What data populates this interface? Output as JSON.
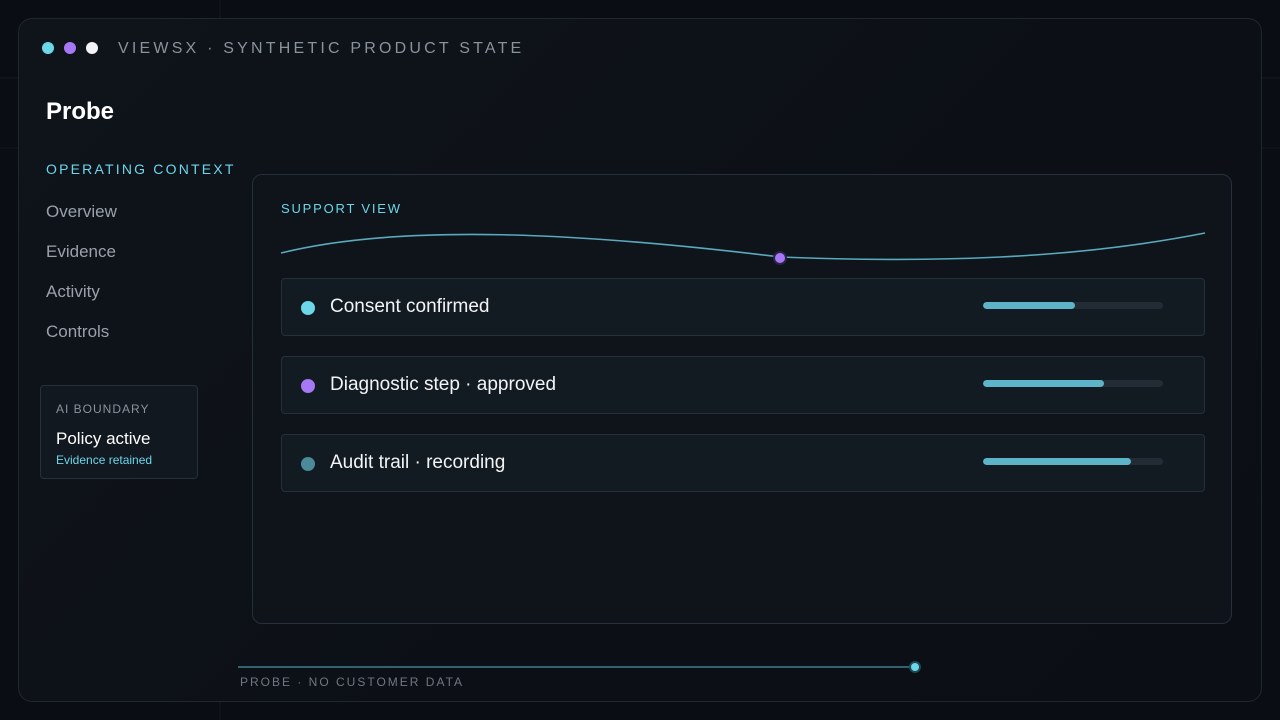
{
  "window": {
    "dots": [
      {
        "name": "cyan",
        "color": "#6cd6ea"
      },
      {
        "name": "violet",
        "color": "#a678f5"
      },
      {
        "name": "white",
        "color": "#f2f4f6"
      }
    ],
    "brand": "VIEWSX · SYNTHETIC PRODUCT STATE"
  },
  "page": {
    "title": "Probe"
  },
  "sidebar": {
    "section_label": "OPERATING CONTEXT",
    "items": [
      {
        "label": "Overview"
      },
      {
        "label": "Evidence"
      },
      {
        "label": "Activity"
      },
      {
        "label": "Controls"
      }
    ],
    "ai_boundary": {
      "eyebrow": "AI BOUNDARY",
      "title": "Policy active",
      "subtitle": "Evidence retained"
    }
  },
  "panel": {
    "label": "SUPPORT VIEW",
    "wave_marker_color": "#a678f5",
    "rows": [
      {
        "label": "Consent confirmed",
        "dot_color": "#6cd6ea",
        "progress": 0.51
      },
      {
        "label": "Diagnostic step · approved",
        "dot_color": "#a678f5",
        "progress": 0.67
      },
      {
        "label": "Audit trail · recording",
        "dot_color": "#4b8a99",
        "progress": 0.82
      }
    ]
  },
  "footer": {
    "text": "PROBE · NO CUSTOMER DATA",
    "progress": 1.0
  },
  "colors": {
    "accent": "#6cd6ea",
    "violet": "#a678f5",
    "bar": "#5db4c9"
  }
}
